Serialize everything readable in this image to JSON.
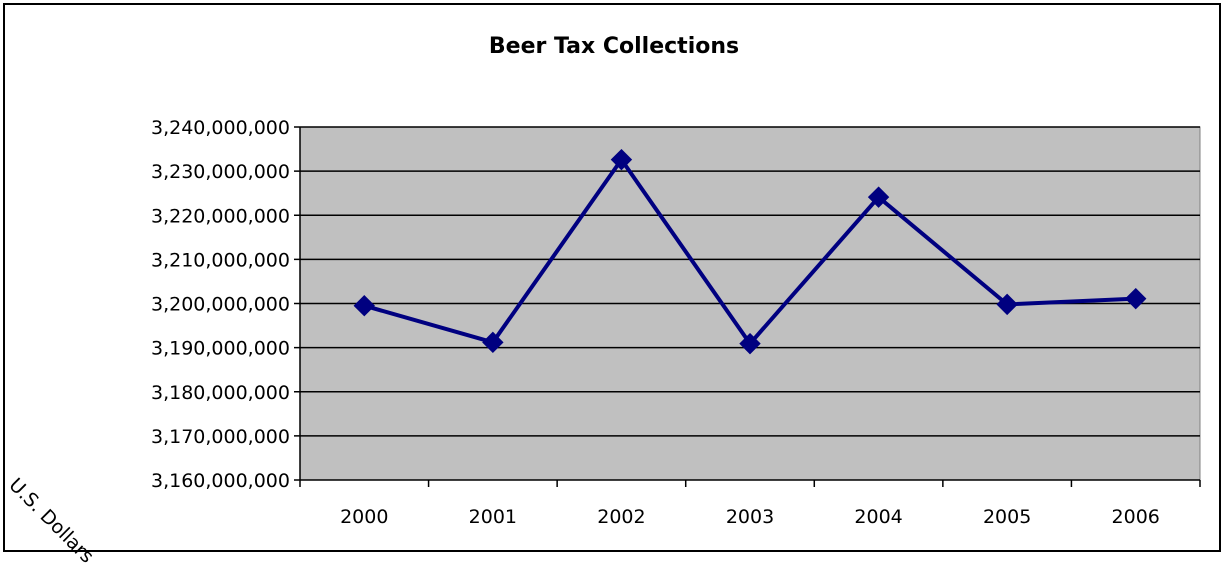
{
  "chart_data": {
    "type": "line",
    "title": "Beer Tax Collections",
    "xlabel": "",
    "ylabel": "U.S. Dollars",
    "categories": [
      "2000",
      "2001",
      "2002",
      "2003",
      "2004",
      "2005",
      "2006"
    ],
    "series": [
      {
        "values": [
          3199500000,
          3191200000,
          3232600000,
          3190900000,
          3224100000,
          3199800000,
          3201100000
        ],
        "color": "#000080"
      }
    ],
    "ylim": [
      3160000000,
      3240000000
    ],
    "yticks": [
      3160000000,
      3170000000,
      3180000000,
      3190000000,
      3200000000,
      3210000000,
      3220000000,
      3230000000,
      3240000000
    ],
    "ytick_labels": [
      "3,160,000,000",
      "3,170,000,000",
      "3,180,000,000",
      "3,190,000,000",
      "3,200,000,000",
      "3,210,000,000",
      "3,220,000,000",
      "3,230,000,000",
      "3,240,000,000"
    ],
    "grid": true,
    "plot_background": "#C0C0C0",
    "legend": "none",
    "marker": "diamond"
  }
}
